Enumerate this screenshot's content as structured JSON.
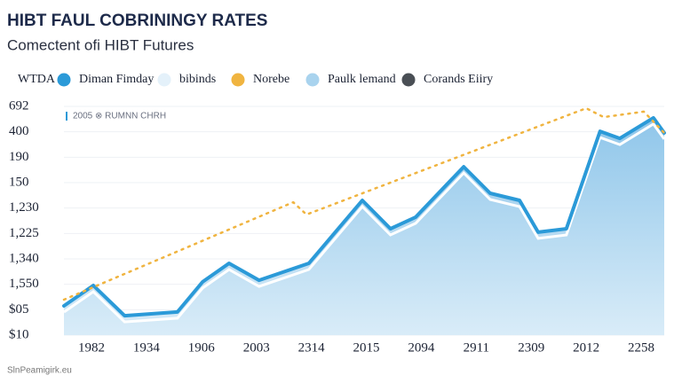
{
  "chart_data": {
    "type": "line",
    "title": "HIBT FAUL COBRININGY RATES",
    "subtitle": "Comectent ofi HIBT Futures",
    "legend_title": "WTDA",
    "annotation": "2005 ⊗ RUMNN CHRH",
    "footer": "SlnPeamigirk.eu",
    "x_axis_labels": [
      "1982",
      "1934",
      "1906",
      "2003",
      "2314",
      "2015",
      "2094",
      "2911",
      "2309",
      "2012",
      "2258"
    ],
    "y_axis_labels": [
      "692",
      "400",
      "190",
      "150",
      "1,230",
      "1,225",
      "1,340",
      "1,550",
      "$05",
      "$10"
    ],
    "xlim": [
      0,
      100
    ],
    "ylim": [
      0,
      100
    ],
    "grid": true,
    "series": [
      {
        "name": "Diman Fimday",
        "color": "#2b9ad8",
        "area": true,
        "x": [
          0,
          4.9,
          10.1,
          18.9,
          23.1,
          27.5,
          32.5,
          40.8,
          49.7,
          54.4,
          58.6,
          66.6,
          71.0,
          75.9,
          79.0,
          83.7,
          89.3,
          92.6,
          98.2,
          100
        ],
        "values": [
          12.8,
          21.7,
          8.5,
          10.1,
          23.3,
          31.4,
          24.0,
          31.4,
          58.9,
          46.5,
          51.6,
          73.6,
          62.0,
          58.9,
          45.0,
          46.5,
          89.1,
          86.0,
          95.0,
          88.4
        ]
      },
      {
        "name": "Norebe",
        "color": "#f0b440",
        "dashed": true,
        "x": [
          0,
          38.2,
          40.4,
          87.0,
          89.9,
          96.6,
          100
        ],
        "values": [
          15.5,
          58.1,
          52.7,
          99.2,
          95.3,
          97.7,
          88.4
        ]
      }
    ],
    "legend_only": [
      {
        "name": "bibinds",
        "color": "#e4f1fa"
      },
      {
        "name": "Paulk lemand",
        "color": "#a9d3ee"
      },
      {
        "name": "Corands Eiiry",
        "color": "#4a4f55"
      }
    ]
  }
}
